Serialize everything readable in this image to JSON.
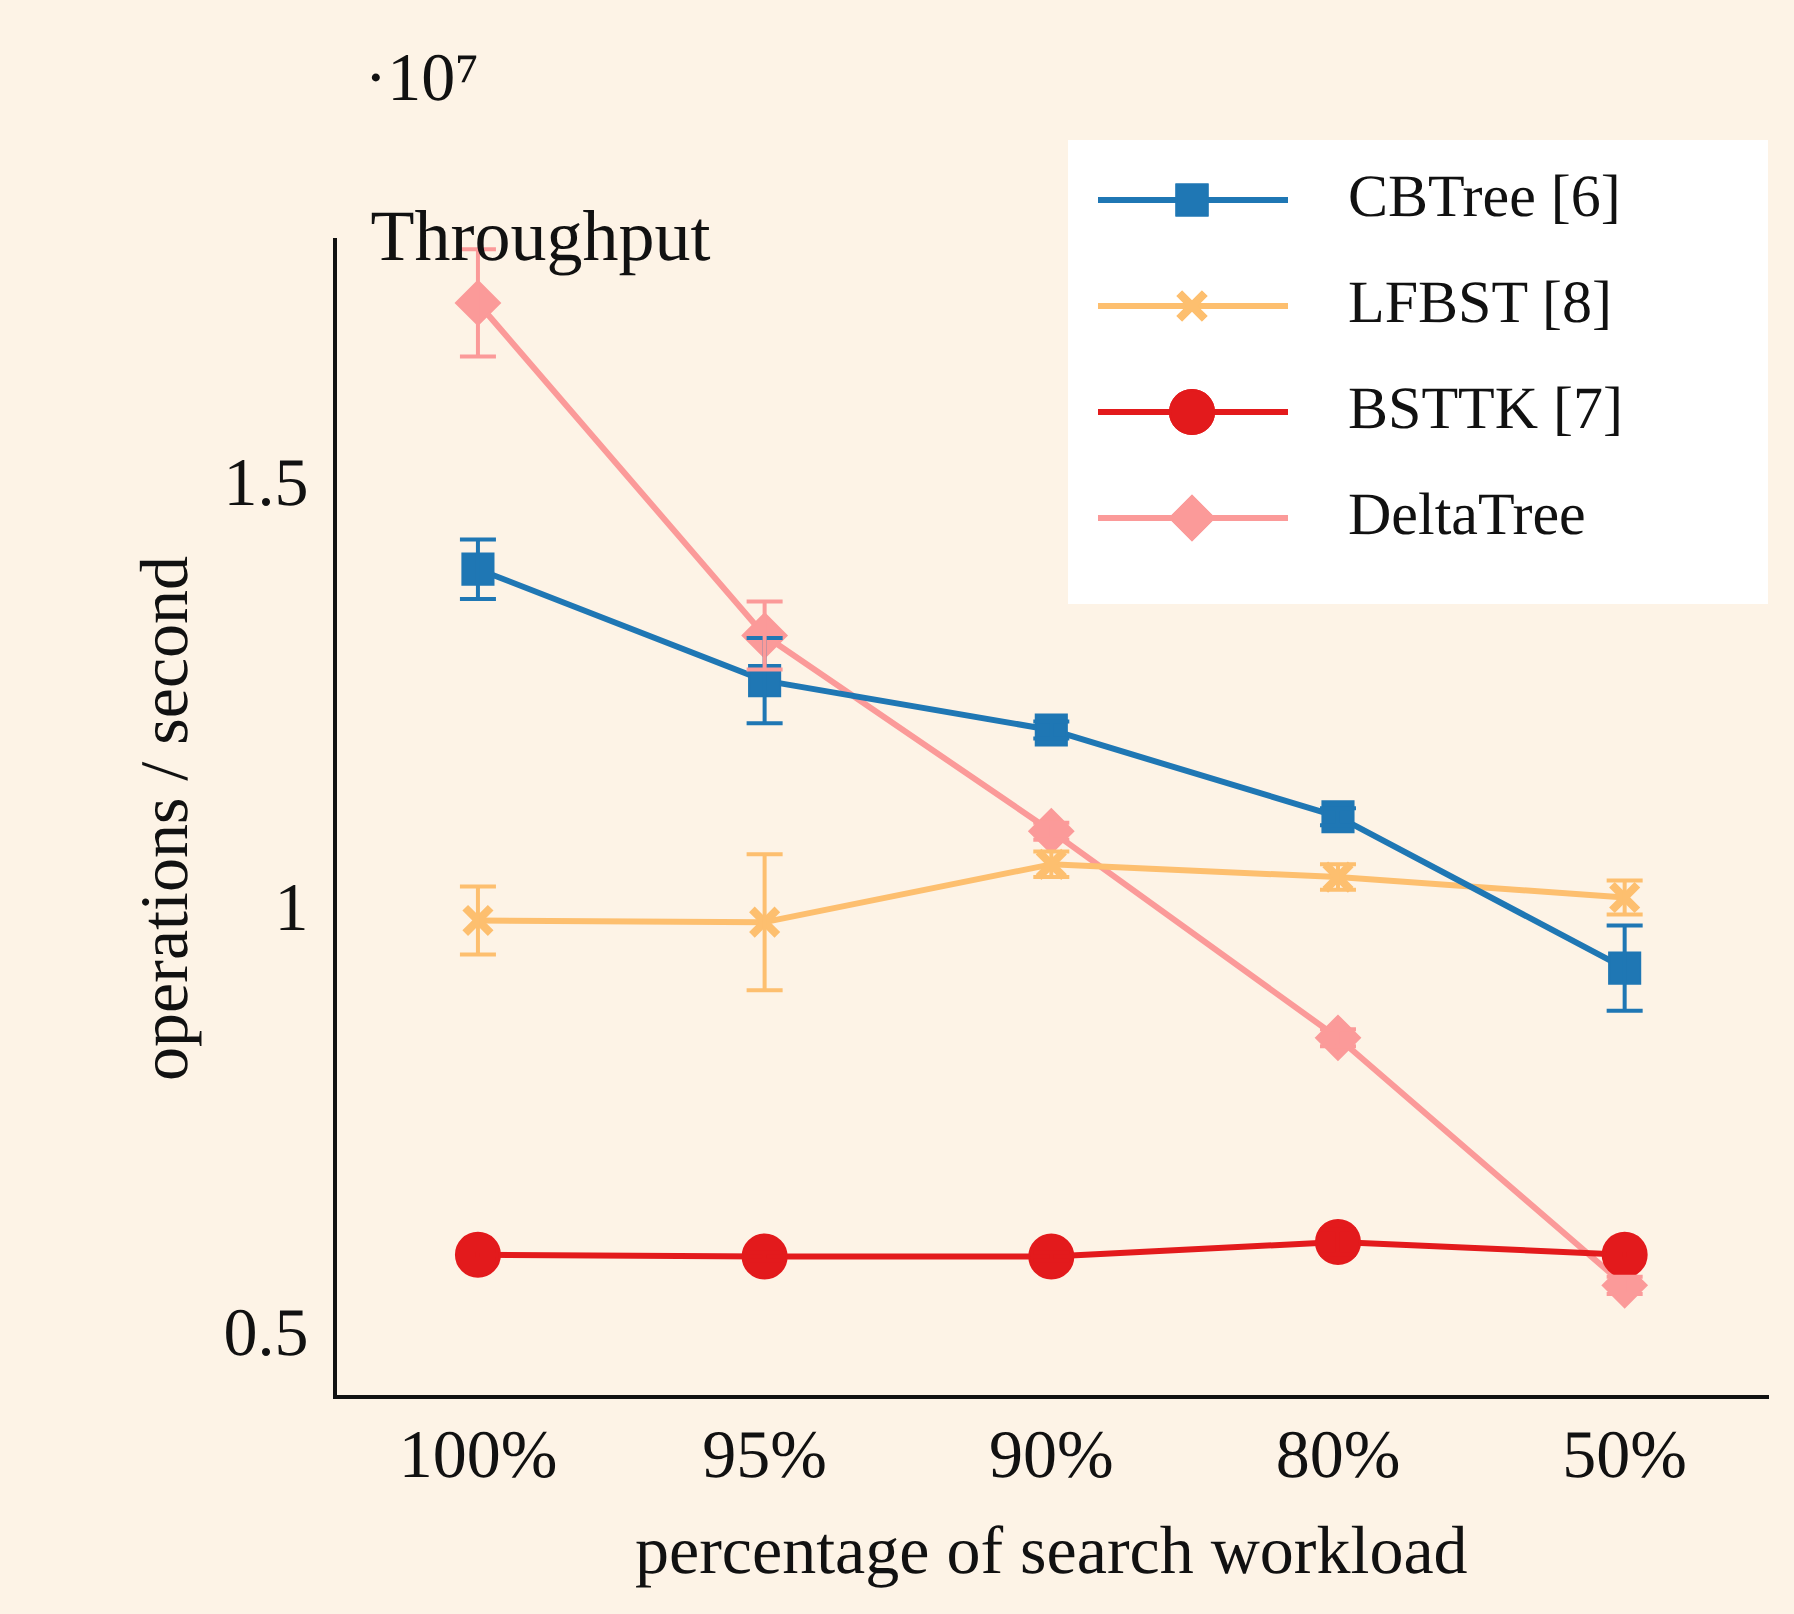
{
  "chart_data": {
    "type": "line",
    "title": "Throughput",
    "xlabel": "percentage of search workload",
    "ylabel": "operations / second",
    "annotations": [
      "·10⁷"
    ],
    "categories": [
      "100%",
      "95%",
      "90%",
      "80%",
      "50%"
    ],
    "series": [
      {
        "name": "CBTree [6]",
        "color": "#1f77b4",
        "marker": "square",
        "values": [
          1.403,
          1.272,
          1.214,
          1.112,
          0.934
        ],
        "errors": [
          0.035,
          0.05,
          0.01,
          0.01,
          0.05
        ]
      },
      {
        "name": "LFBST [8]",
        "color": "#fdbf6f",
        "marker": "cross",
        "values": [
          0.99,
          0.988,
          1.056,
          1.041,
          1.017
        ],
        "errors": [
          0.04,
          0.08,
          0.015,
          0.015,
          0.02
        ]
      },
      {
        "name": "BSTTK [7]",
        "color": "#e31a1c",
        "marker": "circle",
        "values": [
          0.597,
          0.595,
          0.595,
          0.612,
          0.597
        ],
        "errors": [
          0.005,
          0.005,
          0.005,
          0.015,
          0.005
        ]
      },
      {
        "name": "DeltaTree",
        "color": "#fb9a99",
        "marker": "diamond",
        "values": [
          1.716,
          1.325,
          1.095,
          0.852,
          0.561
        ],
        "errors": [
          0.063,
          0.04,
          0.01,
          0.01,
          0.01
        ]
      }
    ],
    "ylim": [
      0.43,
      1.79
    ],
    "yticks": [
      0.5,
      1,
      1.5
    ],
    "grid": false,
    "legend": "top right",
    "line_style": "solid"
  }
}
